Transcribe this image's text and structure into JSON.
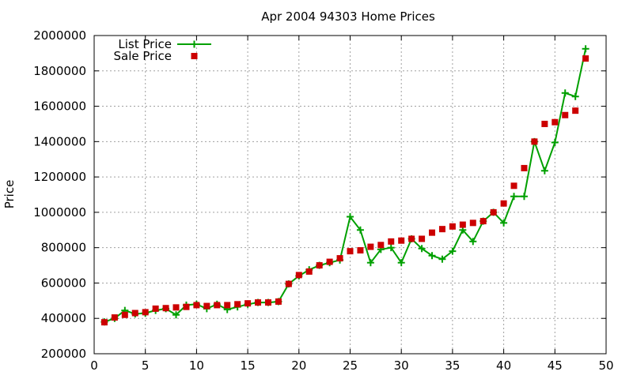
{
  "chart_data": {
    "type": "line",
    "title": "Apr 2004 94303 Home Prices",
    "xlabel": "",
    "ylabel": "Price",
    "xlim": [
      0,
      50
    ],
    "ylim": [
      200000,
      2000000
    ],
    "xticks": [
      0,
      5,
      10,
      15,
      20,
      25,
      30,
      35,
      40,
      45,
      50
    ],
    "yticks": [
      200000,
      400000,
      600000,
      800000,
      1000000,
      1200000,
      1400000,
      1600000,
      1800000,
      2000000
    ],
    "grid": true,
    "legend": "top-left",
    "series": [
      {
        "name": "List Price",
        "style": "line-with-plus-markers",
        "color": "#00a000",
        "x": [
          1,
          2,
          3,
          4,
          5,
          6,
          7,
          8,
          9,
          10,
          11,
          12,
          13,
          14,
          15,
          16,
          17,
          18,
          19,
          20,
          21,
          22,
          23,
          24,
          25,
          26,
          27,
          28,
          29,
          30,
          31,
          32,
          33,
          34,
          35,
          36,
          37,
          38,
          39,
          40,
          41,
          42,
          43,
          44,
          45,
          46,
          47,
          48
        ],
        "y": [
          380000,
          400000,
          445000,
          425000,
          430000,
          445000,
          455000,
          420000,
          475000,
          480000,
          455000,
          480000,
          450000,
          465000,
          480000,
          490000,
          490000,
          495000,
          595000,
          640000,
          675000,
          700000,
          715000,
          730000,
          975000,
          900000,
          715000,
          790000,
          800000,
          715000,
          850000,
          795000,
          755000,
          735000,
          780000,
          900000,
          835000,
          950000,
          1000000,
          940000,
          1090000,
          1090000,
          1400000,
          1235000,
          1395000,
          1675000,
          1655000,
          1925000
        ]
      },
      {
        "name": "Sale Price",
        "style": "square-markers",
        "color": "#cc0000",
        "x": [
          1,
          2,
          3,
          4,
          5,
          6,
          7,
          8,
          9,
          10,
          11,
          12,
          13,
          14,
          15,
          16,
          17,
          18,
          19,
          20,
          21,
          22,
          23,
          24,
          25,
          26,
          27,
          28,
          29,
          30,
          31,
          32,
          33,
          34,
          35,
          36,
          37,
          38,
          39,
          40,
          41,
          42,
          43,
          44,
          45,
          46,
          47,
          48
        ],
        "y": [
          378000,
          405000,
          420000,
          430000,
          435000,
          455000,
          458000,
          462000,
          465000,
          475000,
          470000,
          475000,
          475000,
          480000,
          485000,
          490000,
          490000,
          495000,
          595000,
          645000,
          665000,
          700000,
          720000,
          740000,
          780000,
          785000,
          805000,
          815000,
          835000,
          840000,
          850000,
          850000,
          885000,
          905000,
          920000,
          930000,
          940000,
          950000,
          1000000,
          1050000,
          1150000,
          1250000,
          1400000,
          1500000,
          1510000,
          1550000,
          1575000,
          1870000
        ]
      }
    ]
  }
}
